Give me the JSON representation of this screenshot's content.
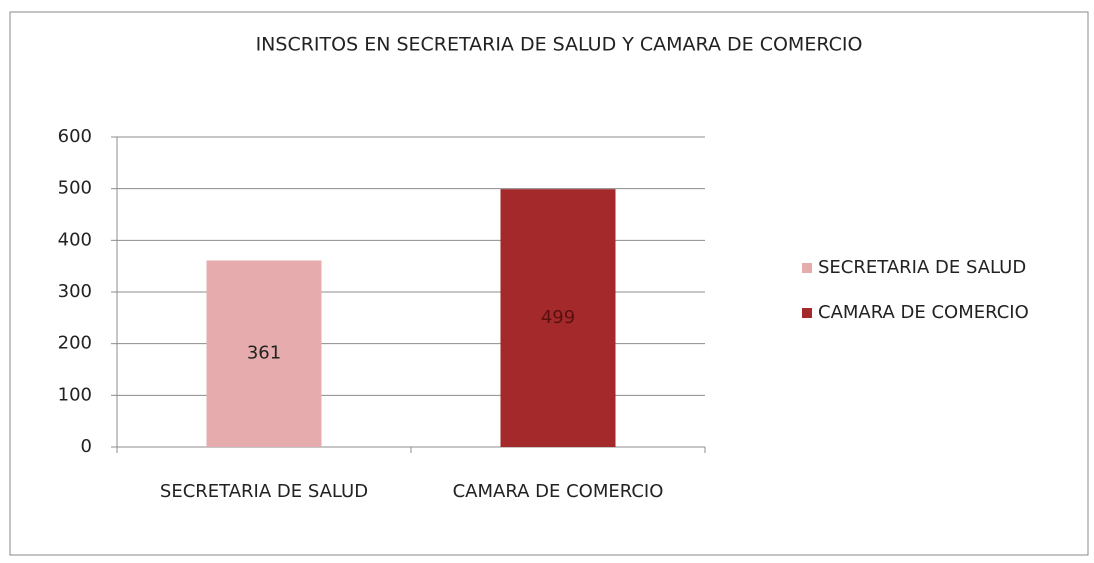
{
  "chart_data": {
    "type": "bar",
    "title": "INSCRITOS EN SECRETARIA DE SALUD Y CAMARA DE COMERCIO",
    "categories": [
      "SECRETARIA DE SALUD",
      "CAMARA DE COMERCIO"
    ],
    "values": [
      361,
      499
    ],
    "colors": [
      "#e6abac",
      "#a3292b"
    ],
    "ylim": [
      0,
      600
    ],
    "yticks": [
      0,
      100,
      200,
      300,
      400,
      500,
      600
    ],
    "grid": true,
    "legend": "right"
  }
}
